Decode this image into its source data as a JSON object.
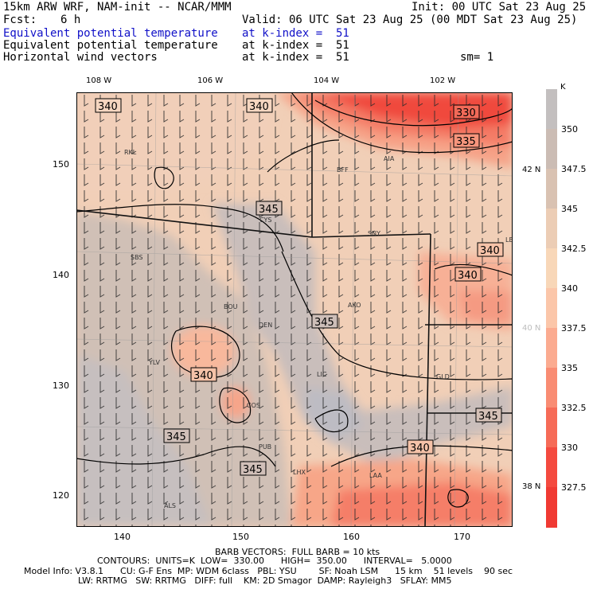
{
  "header": {
    "model": "15km ARW WRF, NAM-init -- NCAR/MMM",
    "init": "Init: 00 UTC Sat 23 Aug 25",
    "fcst_label": "Fcst:",
    "fcst_value": "6 h",
    "valid": "Valid: 06 UTC Sat 23 Aug 25 (00 MDT Sat 23 Aug 25)",
    "fields": [
      {
        "name": "Equivalent potential temperature",
        "level": "at k-index =  51",
        "highlight": true
      },
      {
        "name": "Equivalent potential temperature",
        "level": "at k-index =  51",
        "highlight": false
      },
      {
        "name": "Horizontal wind vectors",
        "level": "at k-index =  51",
        "highlight": false
      }
    ],
    "smooth": "sm= 1"
  },
  "map": {
    "lon_labels": [
      "108 W",
      "106 W",
      "104 W",
      "102 W"
    ],
    "lat_labels_right": [
      "42 N",
      "40 N",
      "38 N"
    ],
    "grid_y_ticks": [
      "150",
      "140",
      "130",
      "120"
    ],
    "grid_x_ticks": [
      "140",
      "150",
      "160",
      "170"
    ],
    "contour_labels": [
      "340",
      "340",
      "330",
      "335",
      "345",
      "340",
      "340",
      "345",
      "340",
      "345",
      "340",
      "345",
      "345"
    ],
    "stations": [
      "RKL",
      "BFF",
      "AIA",
      "CYS",
      "SNY",
      "LBF",
      "SBS",
      "BOU",
      "AKO",
      "DEN",
      "LIC",
      "GLD",
      "YLV",
      "COS",
      "PUB",
      "LHX",
      "LAA",
      "ALS"
    ]
  },
  "colorbar": {
    "unit": "K",
    "labels": [
      "350",
      "347.5",
      "345",
      "342.5",
      "340",
      "337.5",
      "335",
      "332.5",
      "330",
      "327.5"
    ],
    "colors": [
      "#c3bfbf",
      "#cbbcb4",
      "#d9c2b2",
      "#eccdb5",
      "#f8d7b8",
      "#fbc6a9",
      "#fbab90",
      "#f98c73",
      "#f66b57",
      "#f44a3f",
      "#f03a33"
    ]
  },
  "footer": {
    "barb": "BARB VECTORS:  FULL BARB = 10 kts",
    "contours": "CONTOURS:  UNITS=K  LOW=  330.00      HIGH=  350.00      INTERVAL=   5.0000",
    "info1": "Model Info: V3.8.1      CU: G-F Ens  MP: WDM 6class   PBL: YSU        SF: Noah LSM      15 km    51 levels    90 sec",
    "info2": "LW: RRTMG   SW: RRTMG   DIFF: full    KM: 2D Smagor  DAMP: Rayleigh3   SFLAY: MM5"
  }
}
